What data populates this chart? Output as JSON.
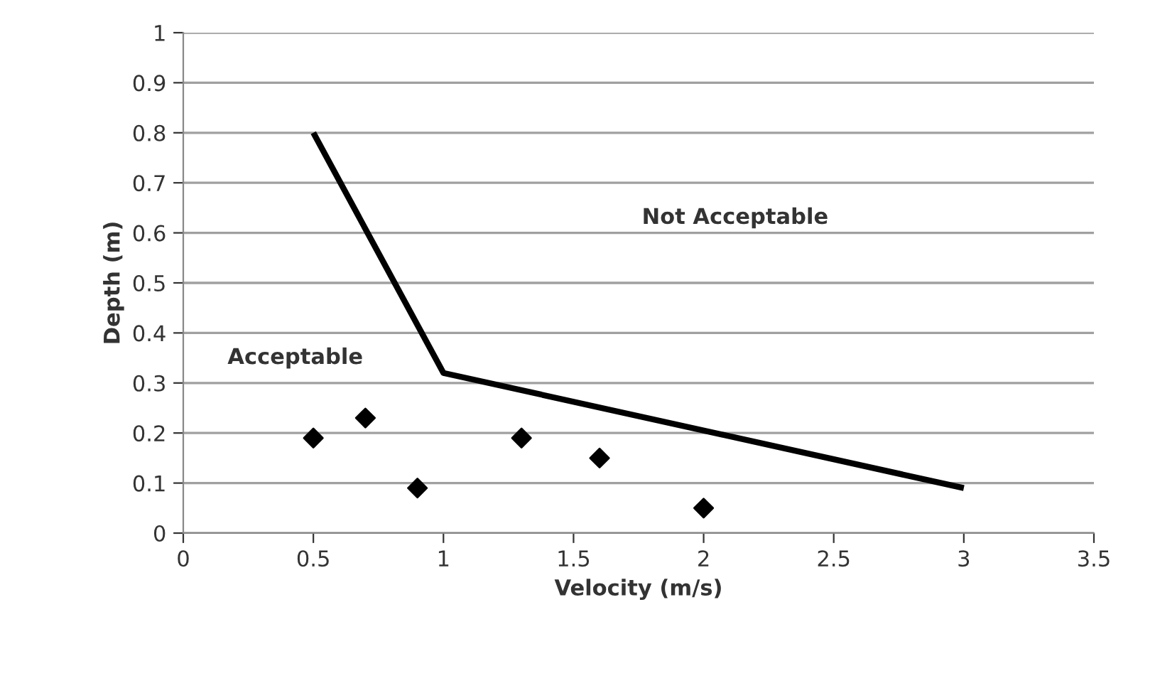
{
  "chart_data": {
    "type": "scatter",
    "xlabel": "Velocity (m/s)",
    "ylabel": "Depth (m)",
    "xlim": [
      0,
      3.5
    ],
    "xticks": [
      0,
      0.5,
      1,
      1.5,
      2,
      2.5,
      3,
      3.5
    ],
    "ylim": [
      0,
      1
    ],
    "yticks": [
      0,
      0.1,
      0.2,
      0.3,
      0.4,
      0.5,
      0.6,
      0.7,
      0.8,
      0.9,
      1
    ],
    "grid": "y",
    "legend": false,
    "series": [
      {
        "type": "line",
        "color": "#000000",
        "marker": "none",
        "line_style": "solid",
        "x": [
          0.5,
          1,
          3
        ],
        "values": [
          0.8,
          0.32,
          0.09
        ]
      },
      {
        "color": "#000000",
        "marker": "diamond",
        "x": [
          0.5,
          0.7,
          0.9,
          1.3,
          1.6,
          2
        ],
        "values": [
          0.19,
          0.23,
          0.09,
          0.19,
          0.15,
          0.05
        ]
      }
    ],
    "annotations": [
      "Acceptable",
      "Not Acceptable"
    ]
  }
}
